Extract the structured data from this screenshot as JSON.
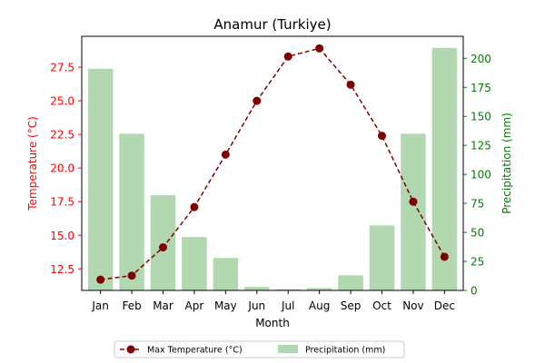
{
  "chart_data": {
    "type": "bar+line",
    "title": "Anamur (Turkiye)",
    "xlabel": "Month",
    "ylabel_left": "Temperature (°C)",
    "ylabel_right": "Precipitation (mm)",
    "categories": [
      "Jan",
      "Feb",
      "Mar",
      "Apr",
      "May",
      "Jun",
      "Jul",
      "Aug",
      "Sep",
      "Oct",
      "Nov",
      "Dec"
    ],
    "series": [
      {
        "name": "Max Temperature (°C)",
        "chart": "line",
        "axis": "left",
        "values": [
          11.7,
          12.0,
          14.1,
          17.1,
          21.0,
          25.0,
          28.3,
          28.9,
          26.2,
          22.4,
          17.5,
          13.4
        ],
        "color": "#800000",
        "marker": "circle",
        "linestyle": "dashed"
      },
      {
        "name": "Precipitation (mm)",
        "chart": "bar",
        "axis": "right",
        "values": [
          191,
          135,
          82,
          46,
          28,
          3,
          1,
          2,
          13,
          56,
          135,
          209
        ],
        "color": "#b2d8b2"
      }
    ],
    "ylim_left": [
      10.9,
      29.8
    ],
    "yticks_left": [
      "12.5",
      "15.0",
      "17.5",
      "20.0",
      "22.5",
      "25.0",
      "27.5"
    ],
    "ylim_right": [
      0,
      219
    ],
    "yticks_right": [
      "0",
      "25",
      "50",
      "75",
      "100",
      "125",
      "150",
      "175",
      "200"
    ],
    "left_axis_color": "#ff0000",
    "right_axis_color": "#008000",
    "grid": false,
    "legend": {
      "position": "bottom-center",
      "columns": 2
    }
  }
}
